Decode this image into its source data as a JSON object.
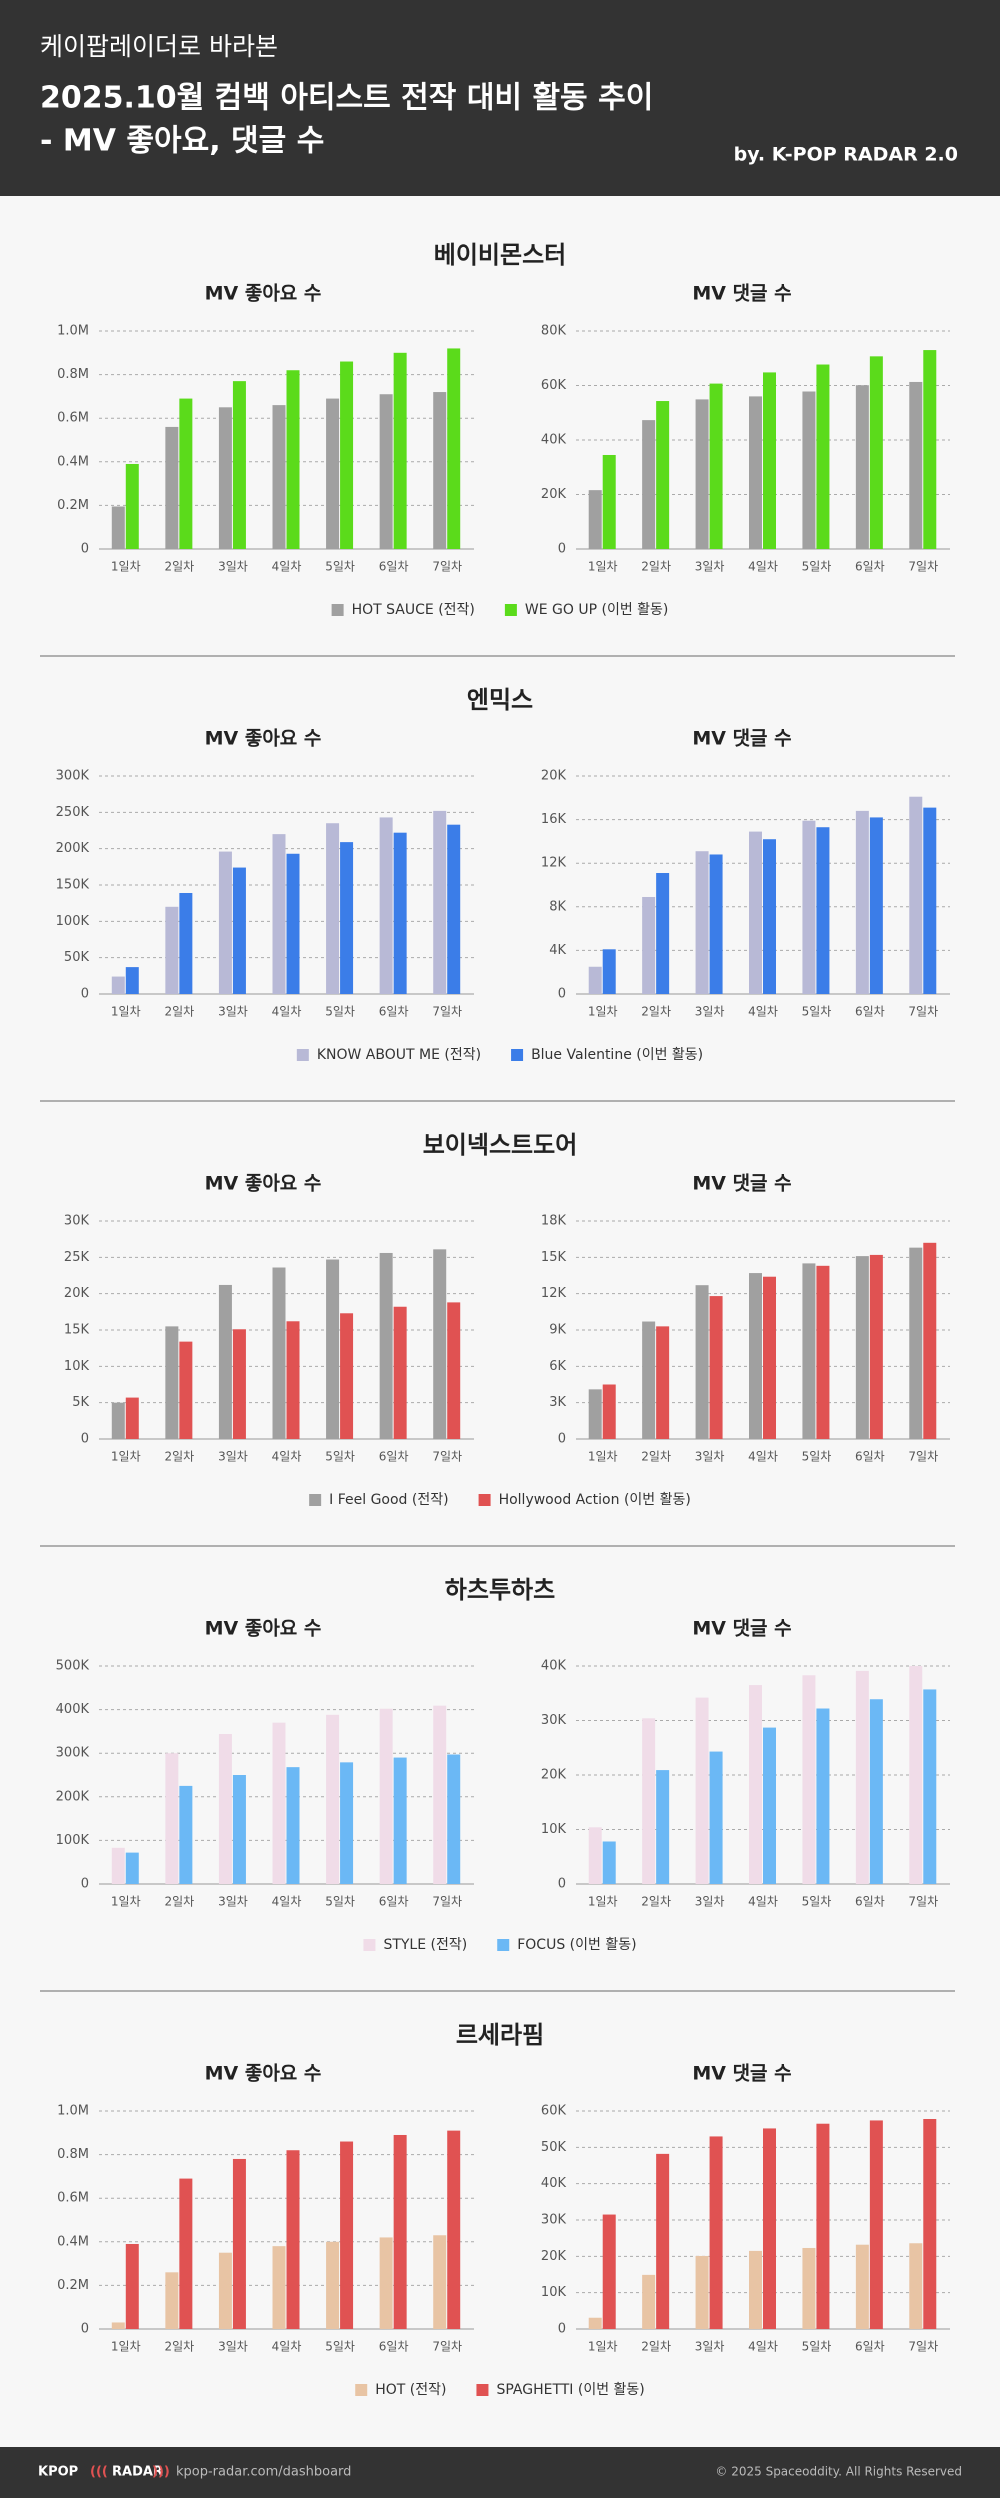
{
  "header": {
    "line1": "케이팝레이더로 바라본",
    "line2": "2025.10월 컴백 아티스트 전작 대비 활동 추이",
    "line3": "- MV 좋아요, 댓글 수",
    "byline": "by. K-POP RADAR 2.0"
  },
  "sections": [
    {
      "title": "베이비몬스터"
    },
    {
      "title": "엔믹스"
    },
    {
      "title": "보이넥스트도어"
    },
    {
      "title": "하츠투하츠"
    },
    {
      "title": "르세라핌"
    }
  ],
  "chart_data": [
    {
      "type": "bar",
      "title": "MV 좋아요 수",
      "categories": [
        "1일차",
        "2일차",
        "3일차",
        "4일차",
        "5일차",
        "6일차",
        "7일차"
      ],
      "ylim": [
        0,
        1000000
      ],
      "yticks": [
        0,
        {
          "value": 200000,
          "label": "0.2M"
        },
        {
          "value": 400000,
          "label": "0.4M"
        },
        {
          "value": 600000,
          "label": "0.6M"
        },
        {
          "value": 800000,
          "label": "0.8M"
        },
        {
          "value": 1000000,
          "label": "1.0M"
        }
      ],
      "grid": true,
      "series": [
        {
          "name": "HOT SAUCE (전작)",
          "color": "#a0a0a0",
          "values": [
            195000,
            560000,
            650000,
            660000,
            690000,
            710000,
            720000
          ]
        },
        {
          "name": "WE GO UP (이번 활동)",
          "color": "#5bdb1b",
          "values": [
            390000,
            690000,
            770000,
            820000,
            860000,
            900000,
            920000
          ]
        }
      ]
    },
    {
      "type": "bar",
      "title": "MV 댓글 수",
      "categories": [
        "1일차",
        "2일차",
        "3일차",
        "4일차",
        "5일차",
        "6일차",
        "7일차"
      ],
      "ylim": [
        0,
        80000
      ],
      "yticks": [
        0,
        {
          "value": 20000,
          "label": "20K"
        },
        {
          "value": 40000,
          "label": "40K"
        },
        {
          "value": 60000,
          "label": "60K"
        },
        {
          "value": 80000,
          "label": "80K"
        }
      ],
      "grid": true,
      "series": [
        {
          "color": "#a0a0a0",
          "values": [
            21600,
            47300,
            54900,
            56000,
            57800,
            60100,
            61300
          ]
        },
        {
          "color": "#5bdb1b",
          "values": [
            34500,
            54300,
            60700,
            64800,
            67700,
            70700,
            73000
          ]
        }
      ]
    },
    {
      "type": "bar",
      "title": "MV 좋아요 수",
      "categories": [
        "1일차",
        "2일차",
        "3일차",
        "4일차",
        "5일차",
        "6일차",
        "7일차"
      ],
      "ylim": [
        0,
        300000
      ],
      "yticks": [
        0,
        {
          "value": 50000,
          "label": "50K"
        },
        {
          "value": 100000,
          "label": "100K"
        },
        {
          "value": 150000,
          "label": "150K"
        },
        {
          "value": 200000,
          "label": "200K"
        },
        {
          "value": 250000,
          "label": "250K"
        },
        {
          "value": 300000,
          "label": "300K"
        }
      ],
      "grid": true,
      "series": [
        {
          "name": "KNOW ABOUT ME (전작)",
          "color": "#b8b9d6",
          "values": [
            24000,
            120000,
            196000,
            220000,
            235000,
            243000,
            252000
          ]
        },
        {
          "name": "Blue Valentine (이번 활동)",
          "color": "#3b7de8",
          "values": [
            37000,
            139000,
            174000,
            193000,
            209000,
            222000,
            233000
          ]
        }
      ]
    },
    {
      "type": "bar",
      "title": "MV 댓글 수",
      "categories": [
        "1일차",
        "2일차",
        "3일차",
        "4일차",
        "5일차",
        "6일차",
        "7일차"
      ],
      "ylim": [
        0,
        20000
      ],
      "yticks": [
        0,
        {
          "value": 4000,
          "label": "4K"
        },
        {
          "value": 8000,
          "label": "8K"
        },
        {
          "value": 12000,
          "label": "12K"
        },
        {
          "value": 16000,
          "label": "16K"
        },
        {
          "value": 20000,
          "label": "20K"
        }
      ],
      "grid": true,
      "series": [
        {
          "color": "#b8b9d6",
          "values": [
            2500,
            8900,
            13100,
            14900,
            15900,
            16800,
            18100
          ]
        },
        {
          "color": "#3b7de8",
          "values": [
            4100,
            11100,
            12800,
            14200,
            15300,
            16200,
            17100
          ]
        }
      ]
    },
    {
      "type": "bar",
      "title": "MV 좋아요 수",
      "categories": [
        "1일차",
        "2일차",
        "3일차",
        "4일차",
        "5일차",
        "6일차",
        "7일차"
      ],
      "ylim": [
        0,
        30000
      ],
      "yticks": [
        0,
        {
          "value": 5000,
          "label": "5K"
        },
        {
          "value": 10000,
          "label": "10K"
        },
        {
          "value": 15000,
          "label": "15K"
        },
        {
          "value": 20000,
          "label": "20K"
        },
        {
          "value": 25000,
          "label": "25K"
        },
        {
          "value": 30000,
          "label": "30K"
        }
      ],
      "grid": true,
      "series": [
        {
          "name": "I Feel Good (전작)",
          "color": "#a0a0a0",
          "values": [
            5000,
            15500,
            21200,
            23600,
            24700,
            25600,
            26100
          ]
        },
        {
          "name": "Hollywood Action (이번 활동)",
          "color": "#e05252",
          "values": [
            5700,
            13400,
            15100,
            16200,
            17300,
            18200,
            18800
          ]
        }
      ]
    },
    {
      "type": "bar",
      "title": "MV 댓글 수",
      "categories": [
        "1일차",
        "2일차",
        "3일차",
        "4일차",
        "5일차",
        "6일차",
        "7일차"
      ],
      "ylim": [
        0,
        18000
      ],
      "yticks": [
        0,
        {
          "value": 3000,
          "label": "3K"
        },
        {
          "value": 6000,
          "label": "6K"
        },
        {
          "value": 9000,
          "label": "9K"
        },
        {
          "value": 12000,
          "label": "12K"
        },
        {
          "value": 15000,
          "label": "15K"
        },
        {
          "value": 18000,
          "label": "18K"
        }
      ],
      "grid": true,
      "series": [
        {
          "color": "#a0a0a0",
          "values": [
            4100,
            9700,
            12700,
            13700,
            14500,
            15100,
            15800
          ]
        },
        {
          "color": "#e05252",
          "values": [
            4500,
            9300,
            11800,
            13400,
            14300,
            15200,
            16200
          ]
        }
      ]
    },
    {
      "type": "bar",
      "title": "MV 좋아요 수",
      "categories": [
        "1일차",
        "2일차",
        "3일차",
        "4일차",
        "5일차",
        "6일차",
        "7일차"
      ],
      "ylim": [
        0,
        500000
      ],
      "yticks": [
        0,
        {
          "value": 100000,
          "label": "100K"
        },
        {
          "value": 200000,
          "label": "200K"
        },
        {
          "value": 300000,
          "label": "300K"
        },
        {
          "value": 400000,
          "label": "400K"
        },
        {
          "value": 500000,
          "label": "500K"
        }
      ],
      "grid": true,
      "series": [
        {
          "name": "STYLE (전작)",
          "color": "#f0dce8",
          "values": [
            83000,
            300000,
            344000,
            370000,
            388000,
            402000,
            409000
          ]
        },
        {
          "name": "FOCUS (이번 활동)",
          "color": "#6bb8f5",
          "values": [
            72000,
            225000,
            250000,
            268000,
            279000,
            290000,
            297000
          ]
        }
      ]
    },
    {
      "type": "bar",
      "title": "MV 댓글 수",
      "categories": [
        "1일차",
        "2일차",
        "3일차",
        "4일차",
        "5일차",
        "6일차",
        "7일차"
      ],
      "ylim": [
        0,
        40000
      ],
      "yticks": [
        0,
        {
          "value": 10000,
          "label": "10K"
        },
        {
          "value": 20000,
          "label": "20K"
        },
        {
          "value": 30000,
          "label": "30K"
        },
        {
          "value": 40000,
          "label": "40K"
        }
      ],
      "grid": true,
      "series": [
        {
          "color": "#f0dce8",
          "values": [
            10400,
            30400,
            34200,
            36500,
            38300,
            39100,
            40000
          ]
        },
        {
          "color": "#6bb8f5",
          "values": [
            7800,
            20900,
            24300,
            28700,
            32200,
            33900,
            35700
          ]
        }
      ]
    },
    {
      "type": "bar",
      "title": "MV 좋아요 수",
      "categories": [
        "1일차",
        "2일차",
        "3일차",
        "4일차",
        "5일차",
        "6일차",
        "7일차"
      ],
      "ylim": [
        0,
        1000000
      ],
      "yticks": [
        0,
        {
          "value": 200000,
          "label": "0.2M"
        },
        {
          "value": 400000,
          "label": "0.4M"
        },
        {
          "value": 600000,
          "label": "0.6M"
        },
        {
          "value": 800000,
          "label": "0.8M"
        },
        {
          "value": 1000000,
          "label": "1.0M"
        }
      ],
      "grid": true,
      "series": [
        {
          "name": "HOT (전작)",
          "color": "#e8c4a4",
          "values": [
            30000,
            260000,
            350000,
            380000,
            400000,
            420000,
            430000
          ]
        },
        {
          "name": "SPAGHETTI (이번 활동)",
          "color": "#e05252",
          "values": [
            390000,
            690000,
            780000,
            820000,
            860000,
            890000,
            910000
          ]
        }
      ]
    },
    {
      "type": "bar",
      "title": "MV 댓글 수",
      "categories": [
        "1일차",
        "2일차",
        "3일차",
        "4일차",
        "5일차",
        "6일차",
        "7일차"
      ],
      "ylim": [
        0,
        60000
      ],
      "yticks": [
        0,
        {
          "value": 10000,
          "label": "10K"
        },
        {
          "value": 20000,
          "label": "20K"
        },
        {
          "value": 30000,
          "label": "30K"
        },
        {
          "value": 40000,
          "label": "40K"
        },
        {
          "value": 50000,
          "label": "50K"
        },
        {
          "value": 60000,
          "label": "60K"
        }
      ],
      "grid": true,
      "series": [
        {
          "color": "#e8c4a4",
          "values": [
            3100,
            14900,
            20100,
            21500,
            22300,
            23200,
            23600
          ]
        },
        {
          "color": "#e05252",
          "values": [
            31500,
            48200,
            53000,
            55200,
            56500,
            57400,
            57800
          ]
        }
      ]
    }
  ],
  "footer": {
    "logo": "KPOP",
    "logo2": "RADAR",
    "url": "kpop-radar.com/dashboard",
    "copyright": "© 2025 Spaceoddity. All Rights Reserved"
  }
}
